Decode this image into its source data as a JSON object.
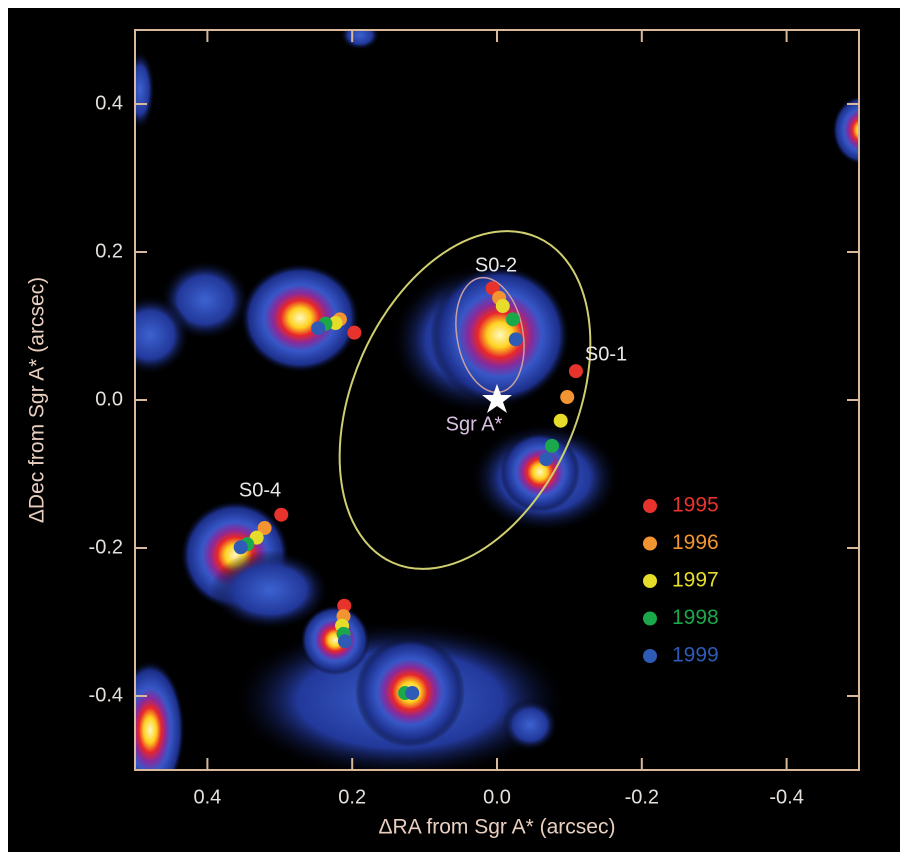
{
  "chart_data": {
    "type": "scatter",
    "x_label": "ΔRA from Sgr A* (arcsec)",
    "y_label": "ΔDec from Sgr A* (arcsec)",
    "xlim": [
      0.5,
      -0.5
    ],
    "ylim": [
      -0.5,
      0.5
    ],
    "xticks": [
      0.4,
      0.2,
      {
        "value": 0,
        "label": "0.0"
      },
      -0.2,
      -0.4
    ],
    "yticks": [
      0.4,
      0.2,
      {
        "value": 0,
        "label": "0.0"
      },
      -0.2,
      -0.4
    ],
    "annotations": [
      "S0-2",
      "S0-1",
      "S0-4",
      "Sgr A*"
    ],
    "series": [
      {
        "name": "1995",
        "color": "#e8332d",
        "x": [
          0.006,
          -0.109,
          0.298,
          0.197,
          0.211,
          null
        ],
        "values": [
          0.151,
          0.039,
          -0.155,
          0.091,
          -0.278,
          null
        ]
      },
      {
        "name": "1996",
        "color": "#f39432",
        "x": [
          -0.003,
          -0.097,
          0.321,
          0.217,
          0.212,
          null
        ],
        "values": [
          0.138,
          0.004,
          -0.173,
          0.109,
          -0.292,
          null
        ]
      },
      {
        "name": "1997",
        "color": "#e6dd2a",
        "x": [
          -0.008,
          -0.088,
          0.332,
          0.223,
          0.214,
          null
        ],
        "values": [
          0.127,
          -0.028,
          -0.186,
          0.104,
          -0.305,
          null
        ]
      },
      {
        "name": "1998",
        "color": "#1aa84a",
        "x": [
          -0.022,
          -0.076,
          0.345,
          0.237,
          0.212,
          0.127
        ],
        "values": [
          0.109,
          -0.062,
          -0.195,
          0.103,
          -0.316,
          -0.396
        ]
      },
      {
        "name": "1999",
        "color": "#2d5bb5",
        "x": [
          -0.026,
          -0.068,
          0.354,
          0.247,
          0.21,
          0.117
        ],
        "values": [
          0.082,
          -0.08,
          -0.199,
          0.097,
          -0.326,
          -0.396
        ]
      }
    ]
  }
}
